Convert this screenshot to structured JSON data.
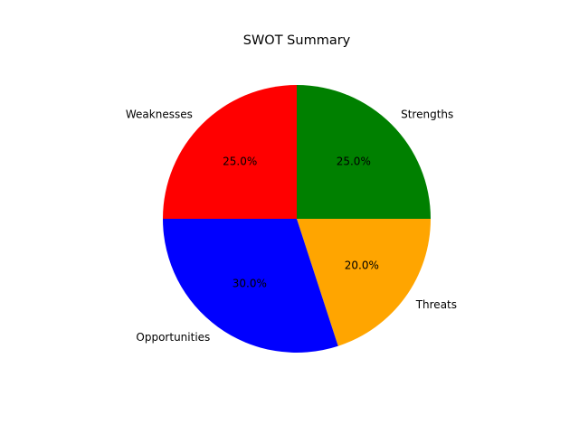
{
  "chart_data": {
    "type": "pie",
    "title": "SWOT Summary",
    "categories": [
      "Strengths",
      "Threats",
      "Opportunities",
      "Weaknesses"
    ],
    "values": [
      25.0,
      20.0,
      30.0,
      25.0
    ],
    "percent_labels": [
      "25.0%",
      "20.0%",
      "30.0%",
      "25.0%"
    ],
    "colors": [
      "#008000",
      "#FFA500",
      "#0000FF",
      "#FF0000"
    ],
    "start_angle": 90,
    "direction": "clockwise",
    "legend": "none"
  }
}
